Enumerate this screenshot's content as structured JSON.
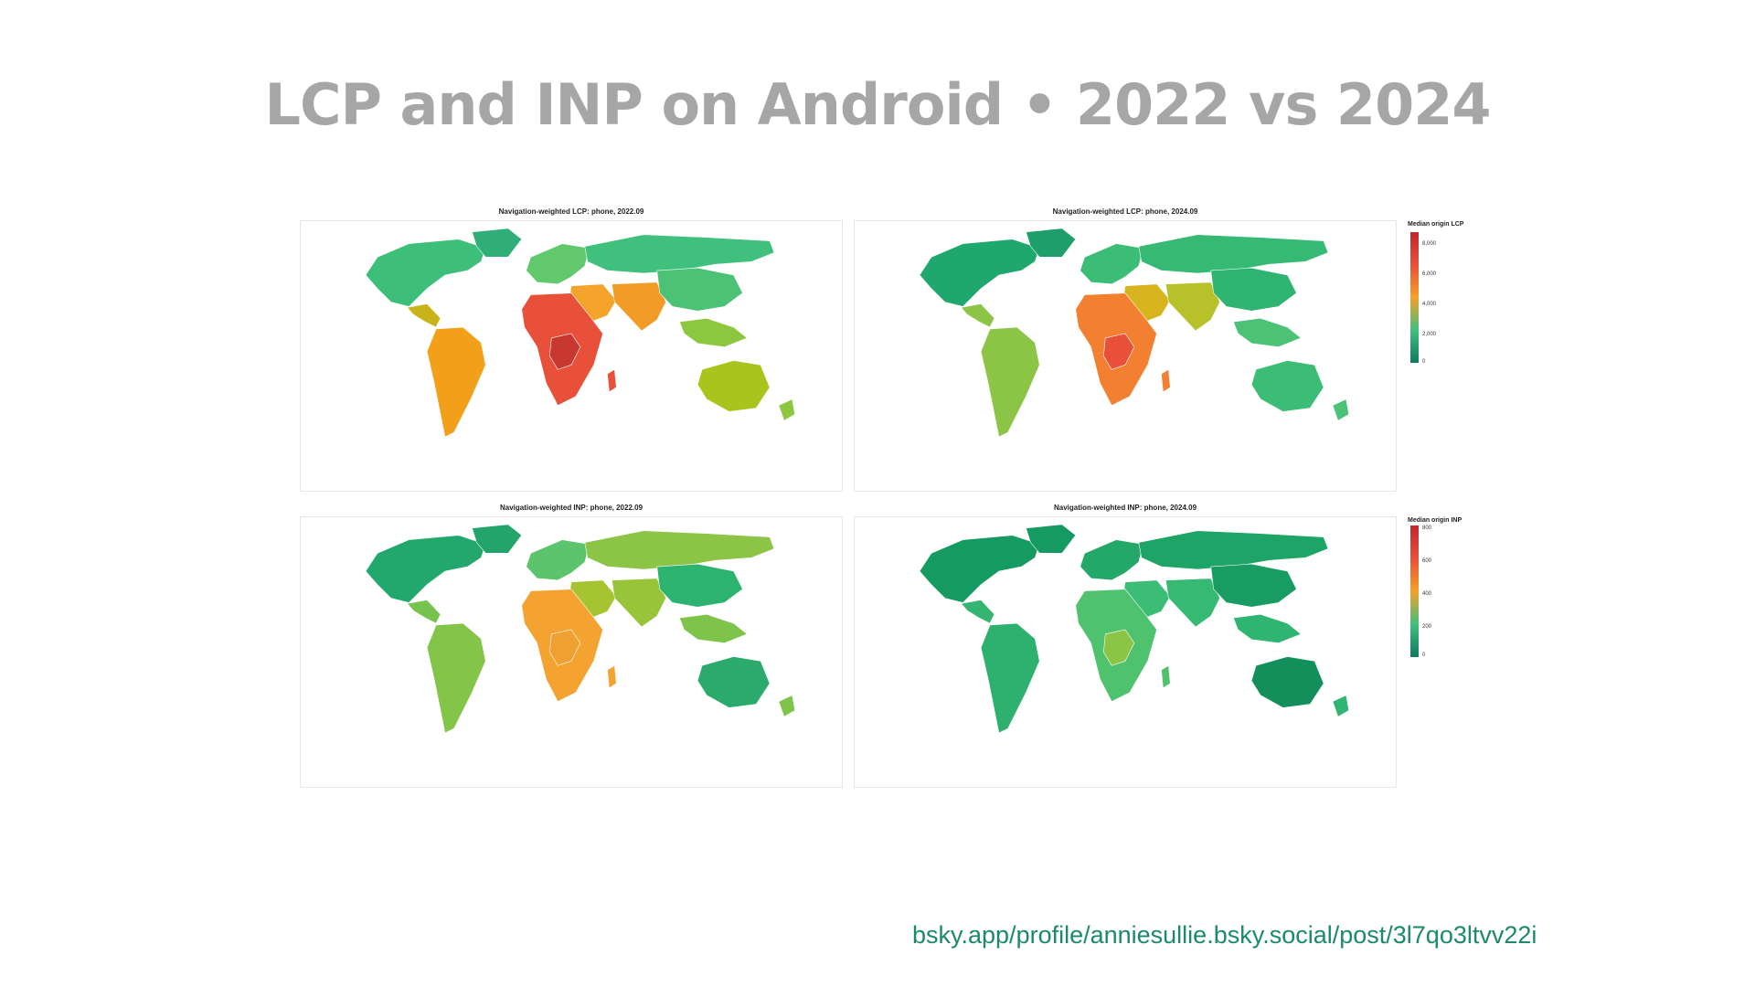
{
  "slide": {
    "title": "LCP and INP on Android • 2022 vs 2024",
    "source": "bsky.app/profile/anniesullie.bsky.social/post/3l7qo3ltvv22i"
  },
  "panels": [
    {
      "title": "Navigation-weighted LCP: phone, 2022.09",
      "palette": {
        "na": "#3dbf7a",
        "ca": "#c8b418",
        "sa": "#f2a01a",
        "eu": "#62c86c",
        "ru": "#3fc07c",
        "me": "#f4a42a",
        "af": "#e8503a",
        "afc": "#c93830",
        "sas": "#f29b26",
        "asia": "#4cc277",
        "sea": "#8dc63f",
        "au": "#a9c41c",
        "gl": "#2fae7a"
      }
    },
    {
      "title": "Navigation-weighted LCP: phone, 2024.09",
      "palette": {
        "na": "#1ea86e",
        "ca": "#8cc446",
        "sa": "#8cc446",
        "eu": "#3cbd76",
        "ru": "#36ba73",
        "me": "#d7b31d",
        "af": "#f28030",
        "afc": "#e8503a",
        "sas": "#b7c22a",
        "asia": "#2fb472",
        "sea": "#4cc277",
        "au": "#3cbd76",
        "gl": "#1e9e6a"
      }
    },
    {
      "title": "Navigation-weighted INP: phone, 2022.09",
      "palette": {
        "na": "#22a86c",
        "ca": "#76c24e",
        "sa": "#84c448",
        "eu": "#5cc46c",
        "ru": "#8cc446",
        "me": "#a6c330",
        "af": "#f4a230",
        "afc": "#f0a030",
        "sas": "#98c43a",
        "asia": "#2db370",
        "sea": "#7ec44a",
        "au": "#2aab6c",
        "gl": "#22a46a"
      }
    },
    {
      "title": "Navigation-weighted INP: phone, 2024.09",
      "palette": {
        "na": "#159a62",
        "ca": "#35b572",
        "sa": "#2eb06e",
        "eu": "#24a86a",
        "ru": "#1ea466",
        "me": "#3cbd76",
        "af": "#4fc26e",
        "afc": "#8cc446",
        "sas": "#36ba73",
        "asia": "#189c62",
        "sea": "#2fb472",
        "au": "#138f5c",
        "gl": "#159a62"
      }
    }
  ],
  "legends": [
    {
      "title": "Median origin LCP",
      "ticks": [
        "8,000",
        "6,000",
        "4,000",
        "2,000",
        "0"
      ]
    },
    {
      "title": "Median origin INP",
      "ticks": [
        "800",
        "600",
        "400",
        "200",
        "0"
      ]
    }
  ],
  "colorscale": [
    "#c0272d",
    "#e8503a",
    "#f5a02a",
    "#3fc07c",
    "#0f7a5e"
  ]
}
